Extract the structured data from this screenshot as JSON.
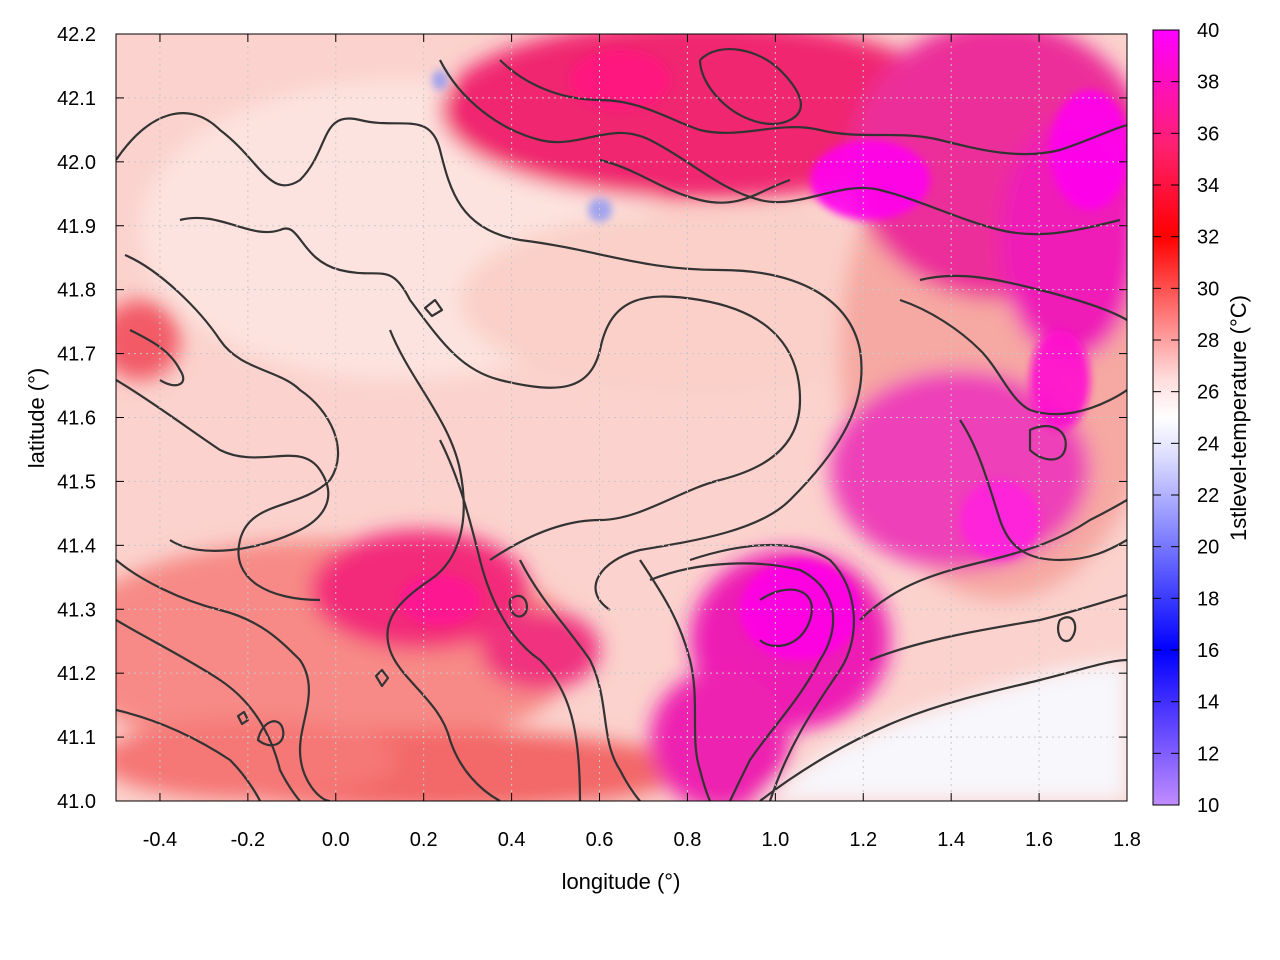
{
  "chart_data": {
    "type": "heatmap",
    "xlabel": "longitude (°)",
    "ylabel": "latitude (°)",
    "colorbar_label": "1stlevel-temperature (°C)",
    "xlim": [
      -0.5,
      1.8
    ],
    "ylim": [
      41.0,
      42.2
    ],
    "x_ticks": [
      "-0.4",
      "-0.2",
      "0.0",
      "0.2",
      "0.4",
      "0.6",
      "0.8",
      "1.0",
      "1.2",
      "1.4",
      "1.6",
      "1.8"
    ],
    "y_ticks": [
      "41.0",
      "41.1",
      "41.2",
      "41.3",
      "41.4",
      "41.5",
      "41.6",
      "41.7",
      "41.8",
      "41.9",
      "42.0",
      "42.1",
      "42.2"
    ],
    "colorbar_range": [
      10,
      40
    ],
    "colorbar_ticks": [
      "10",
      "12",
      "14",
      "16",
      "18",
      "20",
      "22",
      "24",
      "26",
      "28",
      "30",
      "32",
      "34",
      "36",
      "38",
      "40"
    ],
    "grid": true,
    "contours": "black elevation contour lines overlaid",
    "colors": {
      "low": "#b37cff",
      "cool": "#0000ff",
      "neutral": "#ffffff",
      "warm": "#ff0000",
      "hot": "#ff00ff"
    }
  }
}
